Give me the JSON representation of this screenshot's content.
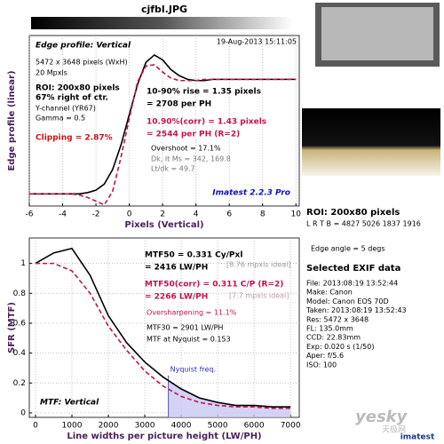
{
  "title": "cjfbl.JPG",
  "side": {
    "roi": "ROI: 200x80 pixels",
    "lrtb": "L R T B = 4827 5026 1837 1916",
    "edge_angle": "Edge angle = 5 degs",
    "exif_title": "Selected EXIF data",
    "exif": [
      "File:  2013:08:19 13:52:44",
      "Make:  Canon",
      "Model:  Canon EOS 70D",
      "Taken:  2013:08:19 13:52:43",
      "Res:  5472 x 3648",
      "FL:  135.0mm",
      "CCD:  22.83mm",
      "Exp:  0.020 s  (1/50)",
      "Aper:  f/5.6",
      "ISO:  100"
    ]
  },
  "watermark": [
    "yesky",
    "天极网",
    "imatest"
  ],
  "chart_data": [
    {
      "type": "line",
      "x_label": "Pixels (Vertical)",
      "y_label": "Edge profile (linear)",
      "xlim": [
        -6,
        10.2
      ],
      "ylim": [
        -0.1,
        1.3
      ],
      "xticks": [
        -6,
        -4,
        -2,
        0,
        2,
        4,
        6,
        8,
        10
      ],
      "grid": true,
      "x": [
        -6,
        -5.5,
        -5,
        -4.5,
        -4,
        -3.5,
        -3,
        -2.5,
        -2,
        -1.5,
        -1,
        -0.5,
        0,
        0.5,
        1,
        1.5,
        2,
        2.5,
        3,
        3.5,
        4,
        4.5,
        5,
        5.5,
        6,
        6.5,
        7,
        7.5,
        8,
        8.5,
        9,
        9.5,
        10
      ],
      "series": [
        {
          "color": "#000000",
          "dash": false,
          "values": [
            0,
            0,
            0,
            0,
            0,
            0,
            0,
            0.01,
            0.03,
            0.08,
            0.2,
            0.4,
            0.65,
            0.9,
            1.08,
            1.14,
            1.1,
            1.02,
            0.97,
            0.94,
            0.93,
            0.93,
            0.94,
            0.94,
            0.94,
            0.94,
            0.94,
            0.94,
            0.94,
            0.94,
            0.94,
            0.94,
            0.94
          ]
        },
        {
          "color": "#c8104e",
          "dash": true,
          "values": [
            0,
            0,
            0,
            0,
            0,
            0,
            -0.01,
            -0.03,
            -0.06,
            -0.09,
            0.02,
            0.3,
            0.62,
            0.92,
            1.05,
            1.06,
            1.0,
            0.95,
            0.93,
            0.93,
            0.93,
            0.94,
            0.94,
            0.94,
            0.94,
            0.94,
            0.94,
            0.94,
            0.94,
            0.94,
            0.94,
            0.94,
            0.94
          ]
        }
      ],
      "annotations": [
        {
          "text": "Edge profile: Vertical",
          "color": "#000000",
          "style": "bold-italic"
        },
        {
          "text": "19-Aug-2013 15:11:05",
          "color": "#000000",
          "style": "normal"
        },
        {
          "text": "5472 x 3648 pixels (WxH)",
          "color": "#000000",
          "style": "normal"
        },
        {
          "text": "20 Mpxls",
          "color": "#000000",
          "style": "normal"
        },
        {
          "text": "ROI: 200x80 pixels",
          "color": "#000000",
          "style": "bold"
        },
        {
          "text": "67% right of ctr.",
          "color": "#000000",
          "style": "bold"
        },
        {
          "text": "Y-channel  (YR67)",
          "color": "#000000",
          "style": "normal"
        },
        {
          "text": "Gamma = 0.5",
          "color": "#000000",
          "style": "normal"
        },
        {
          "text": "Clipping =  2.87%",
          "color": "#d01010",
          "style": "bold"
        },
        {
          "text": "10-90% rise = 1.35 pixels",
          "color": "#000000",
          "style": "bold"
        },
        {
          "text": "= 2708 per PH",
          "color": "#000000",
          "style": "bold"
        },
        {
          "text": "10.90%(corr) = 1.43 pixels",
          "color": "#c8104e",
          "style": "bold"
        },
        {
          "text": "= 2544 per PH  (R=2)",
          "color": "#c8104e",
          "style": "bold"
        },
        {
          "text": "Overshoot = 17.1%",
          "color": "#000000",
          "style": "normal"
        },
        {
          "text": "Dk, lt Ms = 342, 169.8",
          "color": "#777777",
          "style": "normal"
        },
        {
          "text": "Lt/dk = 49.7",
          "color": "#777777",
          "style": "normal"
        },
        {
          "text": "Imatest 2.2.3 Pro",
          "color": "#1010c0",
          "style": "bold-italic"
        }
      ]
    },
    {
      "type": "line",
      "x_label": "Line widths per picture height (LW/PH)",
      "y_label": "SFR (MTF)",
      "xlim": [
        -170,
        7240
      ],
      "ylim": [
        -0.03,
        1.17
      ],
      "xticks": [
        0,
        1000,
        2000,
        3000,
        4000,
        5000,
        6000,
        7000
      ],
      "yticks": [
        0,
        0.2,
        0.4,
        0.6,
        0.8,
        1
      ],
      "grid": true,
      "x": [
        0,
        500,
        1000,
        1500,
        2000,
        2500,
        3000,
        3500,
        4000,
        4500,
        5000,
        5500,
        6000,
        6500,
        7000
      ],
      "series": [
        {
          "color": "#000000",
          "dash": false,
          "values": [
            1.0,
            1.07,
            1.1,
            0.92,
            0.65,
            0.47,
            0.34,
            0.24,
            0.16,
            0.1,
            0.07,
            0.05,
            0.05,
            0.04,
            0.04
          ]
        },
        {
          "color": "#c8104e",
          "dash": true,
          "values": [
            1.0,
            1.0,
            0.95,
            0.8,
            0.58,
            0.42,
            0.28,
            0.18,
            0.11,
            0.07,
            0.05,
            0.04,
            0.04,
            0.03,
            0.03
          ]
        }
      ],
      "vlines": [
        {
          "x": 3648,
          "label": "Nyquist freq."
        }
      ],
      "annotations": [
        {
          "text": "MTF50 = 0.331 Cy/Pxl",
          "color": "#000000",
          "style": "bold"
        },
        {
          "text": "= 2416 LW/PH",
          "color": "#000000",
          "style": "bold"
        },
        {
          "text": "[8.76 mpxls ideal]",
          "color": "#999999",
          "style": "normal"
        },
        {
          "text": "MTF50(corr) = 0.311 C/P  (R=2)",
          "color": "#c8104e",
          "style": "bold"
        },
        {
          "text": "= 2266 LW/PH",
          "color": "#c8104e",
          "style": "bold"
        },
        {
          "text": "[7.7 mpxls ideal]",
          "color": "#c899aa",
          "style": "normal"
        },
        {
          "text": "Oversharpening = 11.1%",
          "color": "#c8104e",
          "style": "normal"
        },
        {
          "text": "MTF30 = 2901 LW/PH",
          "color": "#000000",
          "style": "normal"
        },
        {
          "text": "MTF at Nyquist = 0.153",
          "color": "#000000",
          "style": "normal"
        },
        {
          "text": "MTF: Vertical",
          "color": "#000000",
          "style": "bold-italic"
        }
      ]
    }
  ]
}
